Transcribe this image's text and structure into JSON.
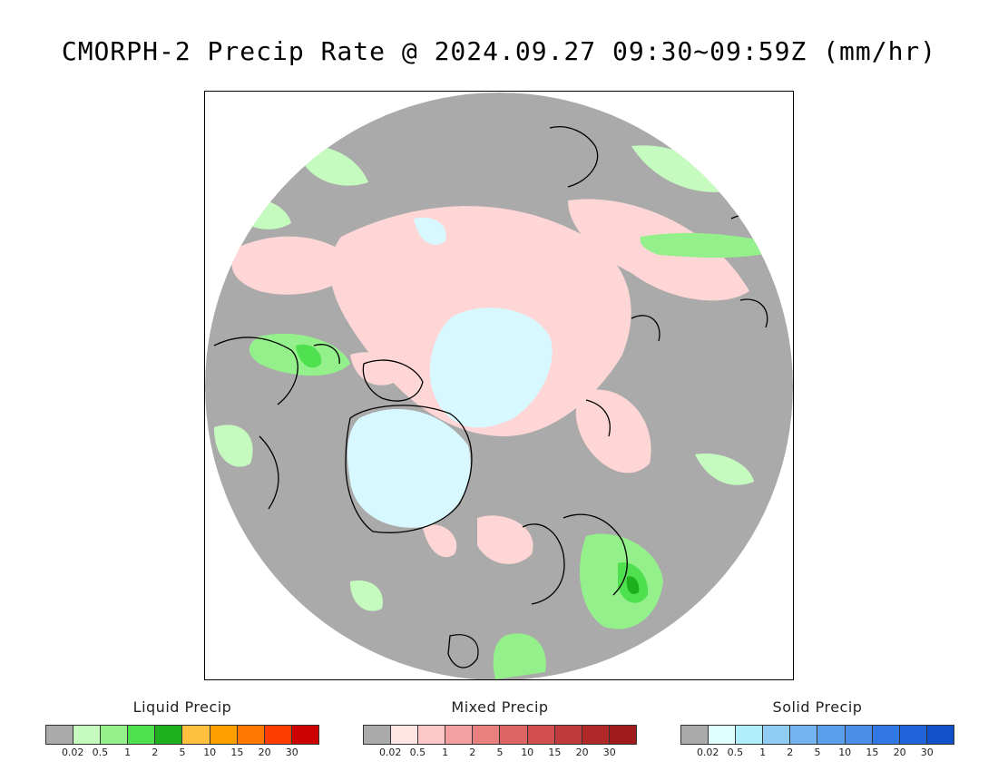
{
  "title": "CMORPH-2 Precip Rate @ 2024.09.27 09:30~09:59Z (mm/hr)",
  "map": {
    "projection": "north-polar-stereographic",
    "no_precip_color": "#aaaaaa",
    "coastline_color": "#000000"
  },
  "legends": [
    {
      "id": "liquid",
      "title": "Liquid Precip",
      "colors": [
        "#aaaaaa",
        "#c6fbc0",
        "#93f08b",
        "#4fe04f",
        "#1fb01f",
        "#ffc040",
        "#ffa000",
        "#ff7800",
        "#ff3c00",
        "#cc0000"
      ],
      "ticks": [
        "0.02",
        "0.5",
        "1",
        "2",
        "5",
        "10",
        "15",
        "20",
        "30"
      ]
    },
    {
      "id": "mixed",
      "title": "Mixed Precip",
      "colors": [
        "#aaaaaa",
        "#ffe4e4",
        "#ffc8c8",
        "#f4a0a0",
        "#e88080",
        "#dc6464",
        "#d04e4e",
        "#c03c3c",
        "#b02828",
        "#a01c1c"
      ],
      "ticks": [
        "0.02",
        "0.5",
        "1",
        "2",
        "5",
        "10",
        "15",
        "20",
        "30"
      ]
    },
    {
      "id": "solid",
      "title": "Solid Precip",
      "colors": [
        "#aaaaaa",
        "#e0ffff",
        "#b0eefa",
        "#90ccf4",
        "#74b4f0",
        "#5aa0ec",
        "#4a8ee8",
        "#3278e4",
        "#2064dc",
        "#1050c8"
      ],
      "ticks": [
        "0.02",
        "0.5",
        "1",
        "2",
        "5",
        "10",
        "15",
        "20",
        "30"
      ]
    }
  ]
}
